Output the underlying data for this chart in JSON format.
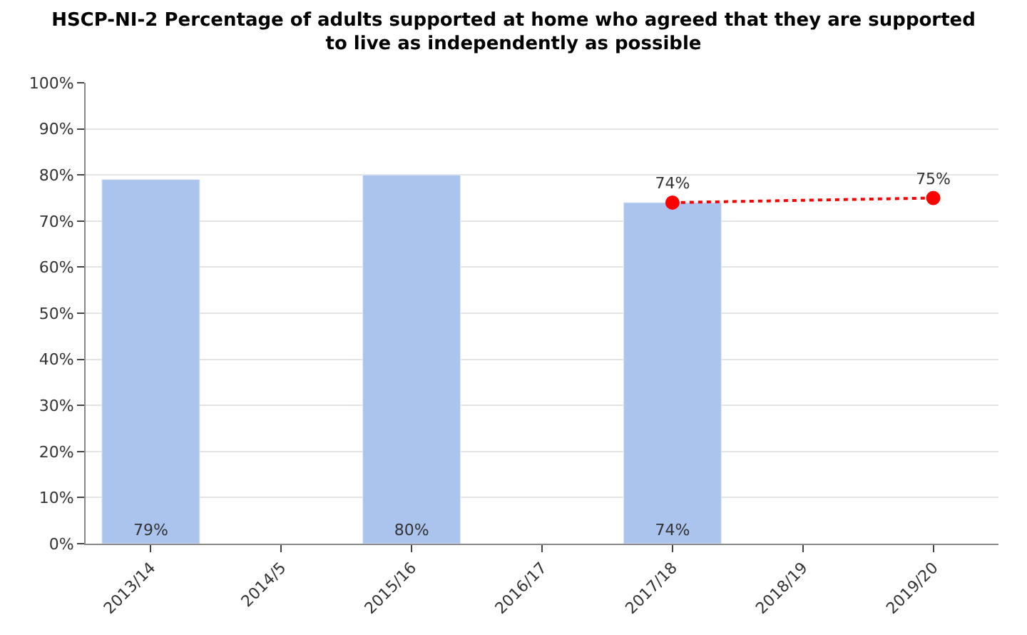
{
  "chart_data": {
    "type": "bar",
    "title": "HSCP-NI-2 Percentage of adults supported at home who agreed that they are supported\nto live as independently as possible",
    "categories": [
      "2013/14",
      "2014/5",
      "2015/16",
      "2016/17",
      "2017/18",
      "2018/19",
      "2019/20"
    ],
    "series": [
      {
        "color": "#aac4ee",
        "values": [
          79,
          null,
          80,
          null,
          74,
          null,
          null
        ],
        "value_labels": [
          "79%",
          null,
          "80%",
          null,
          "74%",
          null,
          null
        ]
      },
      {
        "type": "line",
        "color": "#ff0000",
        "values": [
          null,
          null,
          null,
          null,
          74,
          null,
          75
        ],
        "value_labels": [
          null,
          null,
          null,
          null,
          "74%",
          null,
          "75%"
        ]
      }
    ],
    "ylim": [
      0,
      100
    ],
    "yticks": [
      {
        "value": 0,
        "label": "0%"
      },
      {
        "value": 10,
        "label": "10%"
      },
      {
        "value": 20,
        "label": "20%"
      },
      {
        "value": 30,
        "label": "30%"
      },
      {
        "value": 40,
        "label": "40%"
      },
      {
        "value": 50,
        "label": "50%"
      },
      {
        "value": 60,
        "label": "60%"
      },
      {
        "value": 70,
        "label": "70%"
      },
      {
        "value": 80,
        "label": "80%"
      },
      {
        "value": 90,
        "label": "90%"
      },
      {
        "value": 100,
        "label": "100%"
      }
    ],
    "grid": "y",
    "marker": "circle",
    "line_style": "dotted"
  }
}
